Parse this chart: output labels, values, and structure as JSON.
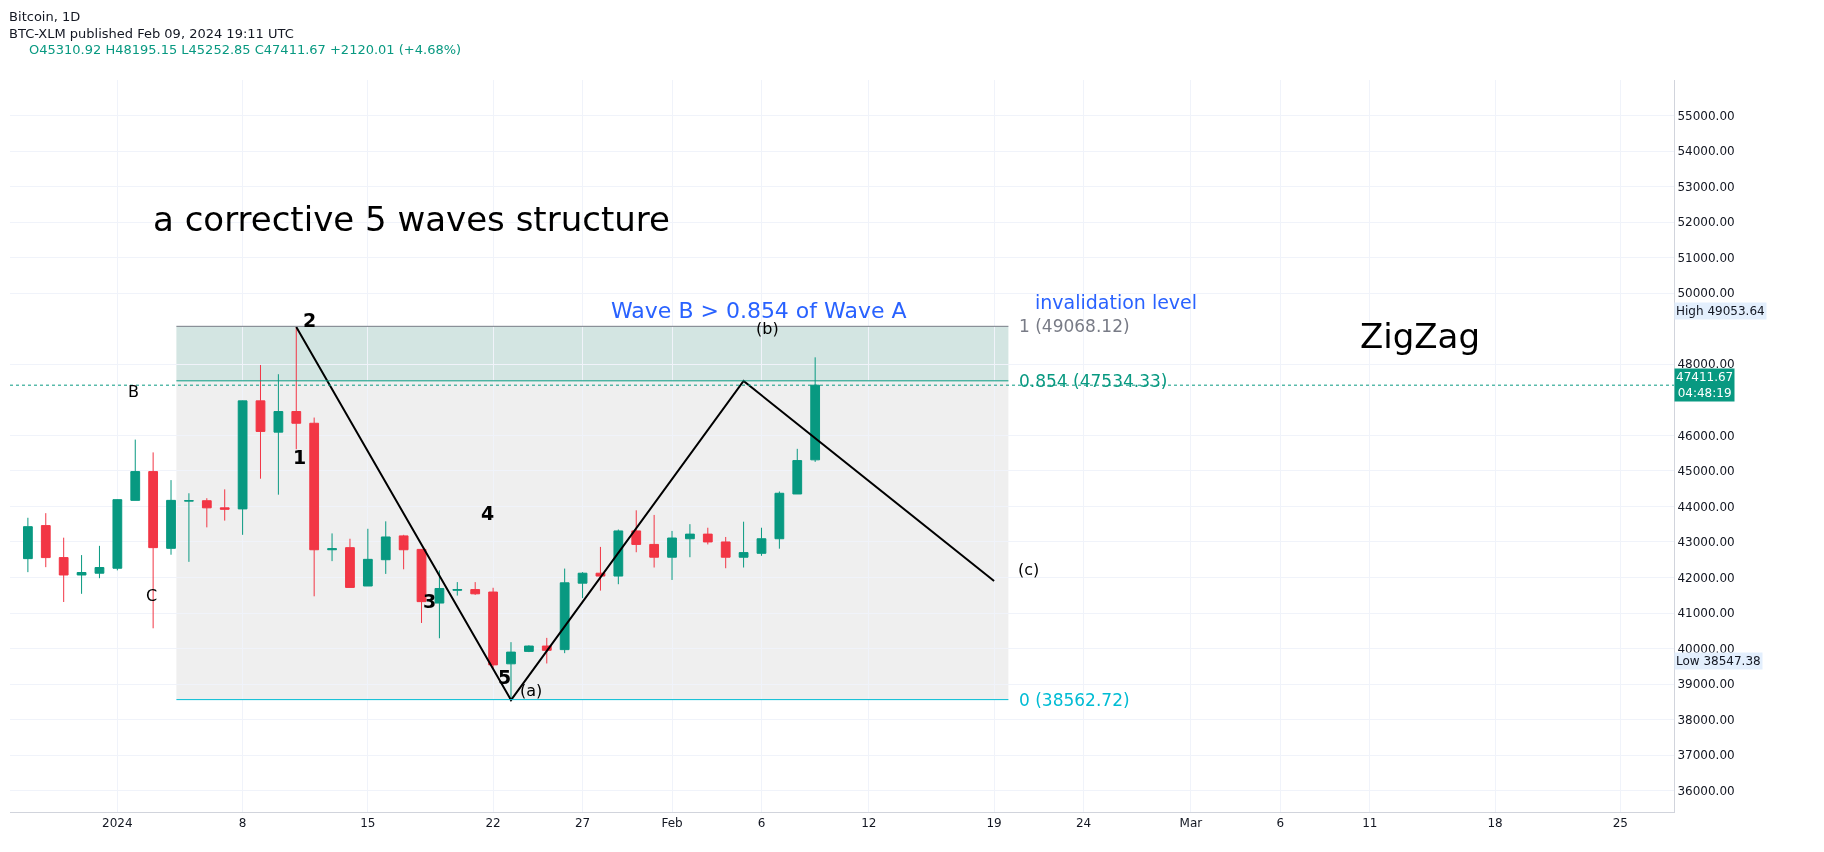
{
  "chart_data": {
    "type": "candlestick",
    "title": "Bitcoin, 1D",
    "subtitle": "BTC-XLM published Feb 09, 2024 19:11 UTC",
    "x": [
      "2023-12-27",
      "2023-12-28",
      "2023-12-29",
      "2023-12-30",
      "2023-12-31",
      "2024-01-01",
      "2024-01-02",
      "2024-01-03",
      "2024-01-04",
      "2024-01-05",
      "2024-01-06",
      "2024-01-07",
      "2024-01-08",
      "2024-01-09",
      "2024-01-10",
      "2024-01-11",
      "2024-01-12",
      "2024-01-13",
      "2024-01-14",
      "2024-01-15",
      "2024-01-16",
      "2024-01-17",
      "2024-01-18",
      "2024-01-19",
      "2024-01-20",
      "2024-01-21",
      "2024-01-22",
      "2024-01-23",
      "2024-01-24",
      "2024-01-25",
      "2024-01-26",
      "2024-01-27",
      "2024-01-28",
      "2024-01-29",
      "2024-01-30",
      "2024-01-31",
      "2024-02-01",
      "2024-02-02",
      "2024-02-03",
      "2024-02-04",
      "2024-02-05",
      "2024-02-06",
      "2024-02-07",
      "2024-02-08",
      "2024-02-09"
    ],
    "ohlc": [
      [
        42530,
        43680,
        42150,
        43430
      ],
      [
        43460,
        43810,
        42290,
        42560
      ],
      [
        42560,
        43120,
        41310,
        42070
      ],
      [
        42070,
        42630,
        41540,
        42140
      ],
      [
        42120,
        42890,
        41980,
        42280
      ],
      [
        42260,
        44200,
        42200,
        44190
      ],
      [
        44170,
        45880,
        44170,
        44980
      ],
      [
        44980,
        45520,
        40570,
        42840
      ],
      [
        42820,
        44740,
        42640,
        44170
      ],
      [
        44150,
        44370,
        42440,
        44160
      ],
      [
        44160,
        44230,
        43410,
        43960
      ],
      [
        43960,
        44480,
        43600,
        43920
      ],
      [
        43930,
        46980,
        43200,
        46970
      ],
      [
        46970,
        47980,
        44780,
        46110
      ],
      [
        46090,
        47720,
        44330,
        46670
      ],
      [
        46670,
        49053.64,
        45610,
        46340
      ],
      [
        46340,
        46500,
        41470,
        42780
      ],
      [
        42780,
        43240,
        42460,
        42810
      ],
      [
        42840,
        43090,
        41720,
        41720
      ],
      [
        41760,
        43370,
        41760,
        42510
      ],
      [
        42500,
        43580,
        42100,
        43140
      ],
      [
        43170,
        43200,
        42230,
        42780
      ],
      [
        42790,
        42790,
        40720,
        41320
      ],
      [
        41280,
        42200,
        40290,
        41690
      ],
      [
        41640,
        41870,
        41490,
        41660
      ],
      [
        41660,
        41870,
        41510,
        41540
      ],
      [
        41590,
        41710,
        39440,
        39540
      ],
      [
        39570,
        40180,
        38547.38,
        39900
      ],
      [
        39920,
        40090,
        39900,
        40070
      ],
      [
        40070,
        40300,
        39580,
        39950
      ],
      [
        39970,
        42250,
        39870,
        41850
      ],
      [
        41840,
        42150,
        41420,
        42120
      ],
      [
        42120,
        42860,
        41630,
        42040
      ],
      [
        42040,
        43350,
        41810,
        43310
      ],
      [
        43310,
        43890,
        42710,
        42930
      ],
      [
        42930,
        43760,
        42280,
        42570
      ],
      [
        42570,
        43310,
        41930,
        43110
      ],
      [
        43090,
        43500,
        42570,
        43220
      ],
      [
        43220,
        43400,
        42930,
        43000
      ],
      [
        43000,
        43140,
        42260,
        42570
      ],
      [
        42570,
        43570,
        42280,
        42700
      ],
      [
        42680,
        43400,
        42610,
        43090
      ],
      [
        43090,
        44420,
        42810,
        44370
      ],
      [
        44350,
        45620,
        44350,
        45290
      ],
      [
        45310.92,
        48195.15,
        45252.85,
        47411.67
      ]
    ],
    "colors": [
      "#089981",
      "#f23645",
      "#f23645",
      "#089981",
      "#089981",
      "#089981",
      "#089981",
      "#f23645",
      "#089981",
      "#089981",
      "#f23645",
      "#f23645",
      "#089981",
      "#f23645",
      "#089981",
      "#f23645",
      "#f23645",
      "#089981",
      "#f23645",
      "#089981",
      "#089981",
      "#f23645",
      "#f23645",
      "#089981",
      "#089981",
      "#f23645",
      "#f23645",
      "#089981",
      "#089981",
      "#f23645",
      "#089981",
      "#089981",
      "#f23645",
      "#089981",
      "#f23645",
      "#f23645",
      "#089981",
      "#089981",
      "#f23645",
      "#f23645",
      "#089981",
      "#089981",
      "#089981",
      "#089981",
      "#089981"
    ],
    "series": [
      {
        "type": "line",
        "color": "#000000",
        "x": [
          "2024-01-11",
          "2024-01-23",
          "2024-02-05",
          "2024-02-19"
        ],
        "values": [
          49050,
          38550,
          47530,
          41900
        ]
      }
    ],
    "xlim": [
      "2023-12-26",
      "2024-03-28"
    ],
    "xticks": [
      {
        "value": "2024-01-01",
        "label": "2024"
      },
      {
        "value": "2024-01-08",
        "label": "8"
      },
      {
        "value": "2024-01-15",
        "label": "15"
      },
      {
        "value": "2024-01-22",
        "label": "22"
      },
      {
        "value": "2024-01-27",
        "label": "27"
      },
      {
        "value": "2024-02-01",
        "label": "Feb"
      },
      {
        "value": "2024-02-06",
        "label": "6"
      },
      {
        "value": "2024-02-12",
        "label": "12"
      },
      {
        "value": "2024-02-19",
        "label": "19"
      },
      {
        "value": "2024-02-24",
        "label": "24"
      },
      {
        "value": "2024-03-01",
        "label": "Mar"
      },
      {
        "value": "2024-03-06",
        "label": "6"
      },
      {
        "value": "2024-03-11",
        "label": "11"
      },
      {
        "value": "2024-03-18",
        "label": "18"
      },
      {
        "value": "2024-03-25",
        "label": "25"
      }
    ],
    "ylim": [
      35400,
      56000
    ],
    "yticks": [
      {
        "value": 36000,
        "label": "36000.00"
      },
      {
        "value": 37000,
        "label": "37000.00"
      },
      {
        "value": 38000,
        "label": "38000.00"
      },
      {
        "value": 39000,
        "label": "39000.00"
      },
      {
        "value": 40000,
        "label": "40000.00"
      },
      {
        "value": 41000,
        "label": "41000.00"
      },
      {
        "value": 42000,
        "label": "42000.00"
      },
      {
        "value": 43000,
        "label": "43000.00"
      },
      {
        "value": 44000,
        "label": "44000.00"
      },
      {
        "value": 45000,
        "label": "45000.00"
      },
      {
        "value": 46000,
        "label": "46000.00"
      },
      {
        "value": 48000,
        "label": "48000.00"
      },
      {
        "value": 50000,
        "label": "50000.00"
      },
      {
        "value": 51000,
        "label": "51000.00"
      },
      {
        "value": 52000,
        "label": "52000.00"
      },
      {
        "value": 53000,
        "label": "53000.00"
      },
      {
        "value": 54000,
        "label": "54000.00"
      },
      {
        "value": 55000,
        "label": "55000.00"
      }
    ],
    "bands": [
      {
        "axis": "y",
        "from": 47534.33,
        "to": 49068.12,
        "color": "#d3e5e2"
      },
      {
        "axis": "y",
        "from": 38562.72,
        "to": 47534.33,
        "color": "#efefef"
      }
    ],
    "ref_lines": [
      {
        "axis": "y",
        "value": 49068.12,
        "label": "1 (49068.12)",
        "color": "#787b86",
        "line_style": "solid"
      },
      {
        "axis": "y",
        "value": 47534.33,
        "label": "0.854 (47534.33)",
        "color": "#089981",
        "line_style": "solid"
      },
      {
        "axis": "y",
        "value": 38562.72,
        "label": "0 (38562.72)",
        "color": "#00bcd4",
        "line_style": "solid"
      },
      {
        "axis": "y",
        "value": 47411.67,
        "label": "47411.67 04:48:19",
        "color": "#089981",
        "line_style": "dotted"
      }
    ],
    "annotations": [
      "O45310.92 H48195.15 L45252.85 C47411.67 +2120.01 (+4.68%)",
      "a corrective 5 waves structure",
      "Wave B > 0.854 of Wave A",
      "invalidation level",
      "ZigZag",
      "High 49053.64",
      "Low 38547.38",
      "B",
      "C",
      "1",
      "2",
      "3",
      "4",
      "5",
      "(a)",
      "(b)",
      "(c)"
    ],
    "grid": true
  }
}
